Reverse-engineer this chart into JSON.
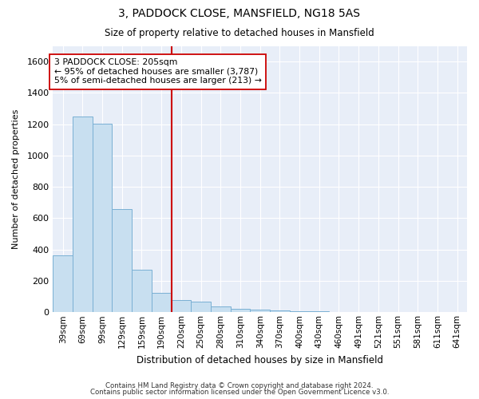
{
  "title1": "3, PADDOCK CLOSE, MANSFIELD, NG18 5AS",
  "title2": "Size of property relative to detached houses in Mansfield",
  "xlabel": "Distribution of detached houses by size in Mansfield",
  "ylabel": "Number of detached properties",
  "bar_color": "#c8dff0",
  "bar_edge_color": "#7ab0d4",
  "categories": [
    "39sqm",
    "69sqm",
    "99sqm",
    "129sqm",
    "159sqm",
    "190sqm",
    "220sqm",
    "250sqm",
    "280sqm",
    "310sqm",
    "340sqm",
    "370sqm",
    "400sqm",
    "430sqm",
    "460sqm",
    "491sqm",
    "521sqm",
    "551sqm",
    "581sqm",
    "611sqm",
    "641sqm"
  ],
  "values": [
    365,
    1250,
    1205,
    660,
    270,
    125,
    80,
    70,
    35,
    20,
    15,
    10,
    5,
    5,
    0,
    0,
    0,
    0,
    0,
    0,
    0
  ],
  "ylim": [
    0,
    1700
  ],
  "yticks": [
    0,
    200,
    400,
    600,
    800,
    1000,
    1200,
    1400,
    1600
  ],
  "vline_x": 6.0,
  "annotation_text": "3 PADDOCK CLOSE: 205sqm\n← 95% of detached houses are smaller (3,787)\n5% of semi-detached houses are larger (213) →",
  "annotation_box_color": "#ffffff",
  "annotation_box_edge": "#cc0000",
  "vline_color": "#cc0000",
  "footer1": "Contains HM Land Registry data © Crown copyright and database right 2024.",
  "footer2": "Contains public sector information licensed under the Open Government Licence v3.0.",
  "background_color": "#ffffff",
  "axes_background": "#e8eef8"
}
